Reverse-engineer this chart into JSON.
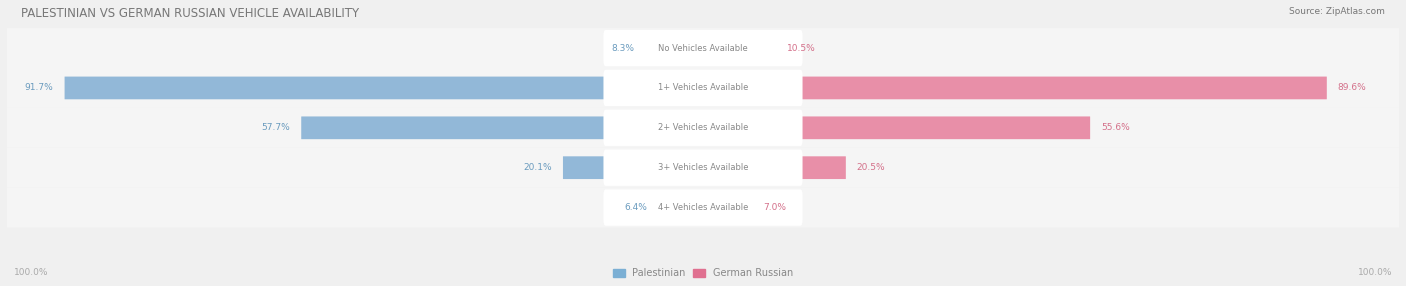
{
  "title": "PALESTINIAN VS GERMAN RUSSIAN VEHICLE AVAILABILITY",
  "source": "Source: ZipAtlas.com",
  "categories": [
    "No Vehicles Available",
    "1+ Vehicles Available",
    "2+ Vehicles Available",
    "3+ Vehicles Available",
    "4+ Vehicles Available"
  ],
  "palestinian_values": [
    8.3,
    91.7,
    57.7,
    20.1,
    6.4
  ],
  "german_russian_values": [
    10.5,
    89.6,
    55.6,
    20.5,
    7.0
  ],
  "palestinian_color": "#92b8d8",
  "german_russian_color": "#e88fa8",
  "label_color_left": "#6a9bbe",
  "label_color_right": "#d4708a",
  "bg_color": "#f0f0f0",
  "row_bg_color": "#f5f5f5",
  "center_label_bg": "#ffffff",
  "center_label_color": "#888888",
  "axis_label_color": "#aaaaaa",
  "title_color": "#777777",
  "legend_blue": "#7bafd4",
  "legend_pink": "#e07090",
  "max_value": 100.0,
  "bottom_labels": [
    "100.0%",
    "100.0%"
  ]
}
